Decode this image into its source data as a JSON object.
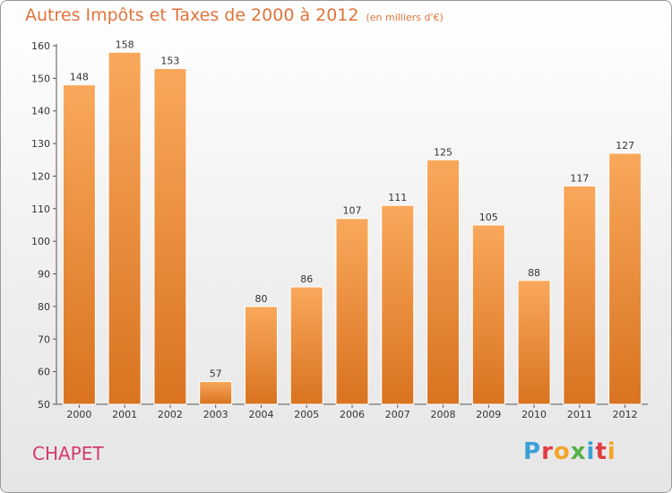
{
  "header": {
    "title": "Autres Impôts et Taxes de 2000 à 2012",
    "unit": "(en milliers d'€)"
  },
  "commune": "CHAPET",
  "logo": {
    "letters": [
      "P",
      "r",
      "o",
      "x",
      "i",
      "t",
      "i"
    ]
  },
  "colors": {
    "bar_top": "#f9a85b",
    "bar_bottom": "#d9731f",
    "title": "#e0733a",
    "commune": "#d23b6a"
  },
  "chart_data": {
    "type": "bar",
    "title": "Autres Impôts et Taxes de 2000 à 2012",
    "subtitle": "(en milliers d'€)",
    "xlabel": "",
    "ylabel": "",
    "categories": [
      "2000",
      "2001",
      "2002",
      "2003",
      "2004",
      "2005",
      "2006",
      "2007",
      "2008",
      "2009",
      "2010",
      "2011",
      "2012"
    ],
    "values": [
      148,
      158,
      153,
      57,
      80,
      86,
      107,
      111,
      125,
      105,
      88,
      117,
      127
    ],
    "ylim": [
      50,
      160
    ],
    "yticks": [
      50,
      60,
      70,
      80,
      90,
      100,
      110,
      120,
      130,
      140,
      150,
      160
    ],
    "grid": false,
    "legend": "none"
  }
}
